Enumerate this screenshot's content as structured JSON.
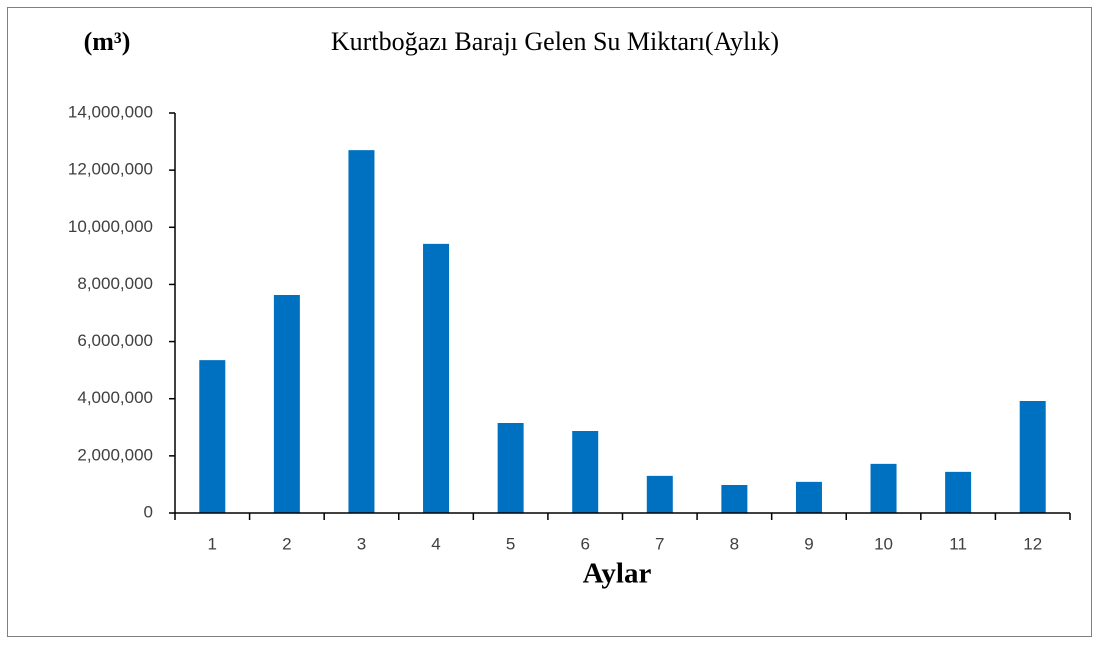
{
  "chart_data": {
    "type": "bar",
    "title": "Kurtboğazı Barajı Gelen Su Miktarı(Aylık)",
    "y_label": "(m³)",
    "x_label": "Aylar",
    "categories": [
      "1",
      "2",
      "3",
      "4",
      "5",
      "6",
      "7",
      "8",
      "9",
      "10",
      "11",
      "12"
    ],
    "values": [
      5350000,
      7630000,
      12700000,
      9420000,
      3150000,
      2870000,
      1300000,
      980000,
      1090000,
      1720000,
      1440000,
      3920000
    ],
    "color": "#0070c0",
    "ylim": [
      0,
      14000000
    ],
    "yticks": [
      0,
      {
        "value": 2000000,
        "label": "2,000,000"
      },
      {
        "value": 4000000,
        "label": "4,000,000"
      },
      {
        "value": 6000000,
        "label": "6,000,000"
      },
      {
        "value": 8000000,
        "label": "8,000,000"
      },
      {
        "value": 10000000,
        "label": "10,000,000"
      },
      {
        "value": 12000000,
        "label": "12,000,000"
      },
      {
        "value": 14000000,
        "label": "14,000,000"
      }
    ],
    "grid": false
  }
}
